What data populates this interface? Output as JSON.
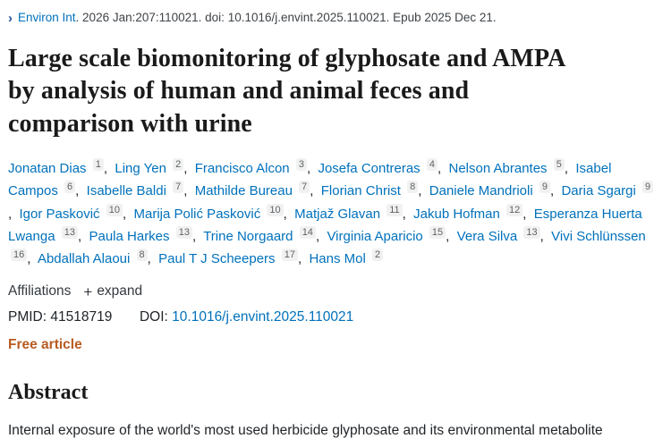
{
  "colors": {
    "link_blue": "#0071bc",
    "chevron_navy": "#205493",
    "free_article_orange": "#b85c21",
    "badge_bg": "#f1f1f1"
  },
  "citation": {
    "chevron_icon": "›",
    "journal": "Environ Int",
    "rest": ". 2026 Jan:207:110021. doi: 10.1016/j.envint.2025.110021. Epub 2025 Dec 21."
  },
  "title": "Large scale biomonitoring of glyphosate and AMPA by analysis of human and animal feces and comparison with urine",
  "authors": [
    {
      "name": "Jonatan Dias",
      "sup": "1"
    },
    {
      "name": "Ling Yen",
      "sup": "2"
    },
    {
      "name": "Francisco Alcon",
      "sup": "3"
    },
    {
      "name": "Josefa Contreras",
      "sup": "4"
    },
    {
      "name": "Nelson Abrantes",
      "sup": "5"
    },
    {
      "name": "Isabel Campos",
      "sup": "6"
    },
    {
      "name": "Isabelle Baldi",
      "sup": "7"
    },
    {
      "name": "Mathilde Bureau",
      "sup": "7"
    },
    {
      "name": "Florian Christ",
      "sup": "8"
    },
    {
      "name": "Daniele Mandrioli",
      "sup": "9"
    },
    {
      "name": "Daria Sgargi",
      "sup": "9"
    },
    {
      "name": "Igor Pasković",
      "sup": "10"
    },
    {
      "name": "Marija Polić Pasković",
      "sup": "10"
    },
    {
      "name": "Matjaž Glavan",
      "sup": "11"
    },
    {
      "name": "Jakub Hofman",
      "sup": "12"
    },
    {
      "name": "Esperanza Huerta Lwanga",
      "sup": "13"
    },
    {
      "name": "Paula Harkes",
      "sup": "13"
    },
    {
      "name": "Trine Norgaard",
      "sup": "14"
    },
    {
      "name": "Virginia Aparicio",
      "sup": "15"
    },
    {
      "name": "Vera Silva",
      "sup": "13"
    },
    {
      "name": "Vivi Schlünssen",
      "sup": "16"
    },
    {
      "name": "Abdallah Alaoui",
      "sup": "8"
    },
    {
      "name": "Paul T J Scheepers",
      "sup": "17"
    },
    {
      "name": "Hans Mol",
      "sup": "2"
    }
  ],
  "affiliations": {
    "label": "Affiliations",
    "plus_icon": "+",
    "expand_label": "expand"
  },
  "ids": {
    "pmid_label": "PMID:",
    "pmid_value": "41518719",
    "doi_label": "DOI:",
    "doi_value": "10.1016/j.envint.2025.110021"
  },
  "free_article_label": "Free article",
  "abstract": {
    "heading": "Abstract",
    "first_line": "Internal exposure of the world's most used herbicide glyphosate and its environmental metabolite"
  }
}
